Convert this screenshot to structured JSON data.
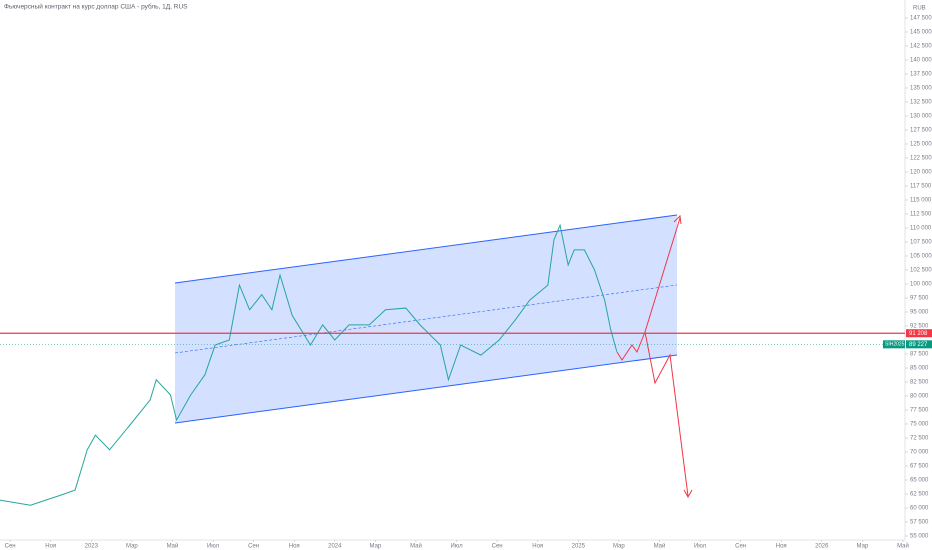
{
  "chart_data": {
    "type": "line",
    "title": "Фьючерсный контракт на курс доллар США - рубль, 1Д, RUS",
    "currency": "RUB",
    "symbol": "SIH2025",
    "x": [
      -0.5,
      1,
      2.5,
      3.2,
      3.8,
      4.2,
      4.9,
      5.9,
      6.9,
      7.2,
      7.9,
      8.2,
      8.9,
      9.6,
      10.1,
      10.8,
      11.3,
      11.8,
      12.4,
      12.9,
      13.3,
      13.9,
      14.8,
      15.4,
      16,
      16.7,
      17.7,
      18.5,
      19.5,
      20.2,
      21.2,
      21.6,
      22.2,
      23.2,
      24.1,
      24.9,
      25.6,
      26.5,
      26.8,
      27.1,
      27.5,
      27.8,
      28.3,
      28.8,
      29.3,
      29.6,
      29.9
    ],
    "series": [
      {
        "color": "#26a69a",
        "values": [
          61400,
          60500,
          62300,
          63200,
          70400,
          73000,
          70400,
          74800,
          79300,
          82900,
          80200,
          75700,
          80200,
          83800,
          89100,
          90000,
          99800,
          95400,
          98100,
          95400,
          101600,
          94400,
          89100,
          92700,
          90000,
          92700,
          92700,
          95400,
          95700,
          92700,
          89100,
          82900,
          89100,
          87300,
          90000,
          93600,
          97100,
          99800,
          107900,
          110500,
          103400,
          106100,
          106100,
          102500,
          97100,
          91800,
          87900
        ]
      }
    ],
    "xlim": [
      -0.5,
      44.1
    ],
    "xticks": [
      {
        "value": 0,
        "label": "Сен"
      },
      {
        "value": 2,
        "label": "Ноя"
      },
      {
        "value": 4,
        "label": "2023"
      },
      {
        "value": 6,
        "label": "Мар"
      },
      {
        "value": 8,
        "label": "Май"
      },
      {
        "value": 10,
        "label": "Июл"
      },
      {
        "value": 12,
        "label": "Сен"
      },
      {
        "value": 14,
        "label": "Ноя"
      },
      {
        "value": 16,
        "label": "2024"
      },
      {
        "value": 18,
        "label": "Мар"
      },
      {
        "value": 20,
        "label": "Май"
      },
      {
        "value": 22,
        "label": "Июл"
      },
      {
        "value": 24,
        "label": "Сен"
      },
      {
        "value": 26,
        "label": "Ноя"
      },
      {
        "value": 28,
        "label": "2025"
      },
      {
        "value": 30,
        "label": "Мар"
      },
      {
        "value": 32,
        "label": "Май"
      },
      {
        "value": 34,
        "label": "Июл"
      },
      {
        "value": 36,
        "label": "Сен"
      },
      {
        "value": 38,
        "label": "Ноя"
      },
      {
        "value": 40,
        "label": "2026"
      },
      {
        "value": 42,
        "label": "Мар"
      },
      {
        "value": 44,
        "label": "Май"
      }
    ],
    "ylim": [
      54286,
      150714
    ],
    "yticks": [
      {
        "value": 147500,
        "label": "147 500"
      },
      {
        "value": 145000,
        "label": "145 000"
      },
      {
        "value": 142500,
        "label": "142 500"
      },
      {
        "value": 140000,
        "label": "140 000"
      },
      {
        "value": 137500,
        "label": "137 500"
      },
      {
        "value": 135000,
        "label": "135 000"
      },
      {
        "value": 132500,
        "label": "132 500"
      },
      {
        "value": 130000,
        "label": "130 000"
      },
      {
        "value": 127500,
        "label": "127 500"
      },
      {
        "value": 125000,
        "label": "125 000"
      },
      {
        "value": 122500,
        "label": "122 500"
      },
      {
        "value": 120000,
        "label": "120 000"
      },
      {
        "value": 117500,
        "label": "117 500"
      },
      {
        "value": 115000,
        "label": "115 000"
      },
      {
        "value": 112500,
        "label": "112 500"
      },
      {
        "value": 110000,
        "label": "110 000"
      },
      {
        "value": 107500,
        "label": "107 500"
      },
      {
        "value": 105000,
        "label": "105 000"
      },
      {
        "value": 102500,
        "label": "102 500"
      },
      {
        "value": 100000,
        "label": "100 000"
      },
      {
        "value": 97500,
        "label": "97 500"
      },
      {
        "value": 95000,
        "label": "95 000"
      },
      {
        "value": 92500,
        "label": "92 500"
      },
      {
        "value": 87500,
        "label": "87 500"
      },
      {
        "value": 85000,
        "label": "85 000"
      },
      {
        "value": 82500,
        "label": "82 500"
      },
      {
        "value": 80000,
        "label": "80 000"
      },
      {
        "value": 77500,
        "label": "77 500"
      },
      {
        "value": 75000,
        "label": "75 000"
      },
      {
        "value": 72500,
        "label": "72 500"
      },
      {
        "value": 70000,
        "label": "70 000"
      },
      {
        "value": 67500,
        "label": "67 500"
      },
      {
        "value": 65000,
        "label": "65 000"
      },
      {
        "value": 62500,
        "label": "62 500"
      },
      {
        "value": 60000,
        "label": "60 000"
      },
      {
        "value": 57500,
        "label": "57 500"
      },
      {
        "value": 55000,
        "label": "55 000"
      }
    ],
    "level_line": {
      "value": 91208,
      "label": "91 208",
      "color": "#f23645"
    },
    "last_price": {
      "value": 89227,
      "label": "89 227",
      "color": "#089981"
    }
  }
}
